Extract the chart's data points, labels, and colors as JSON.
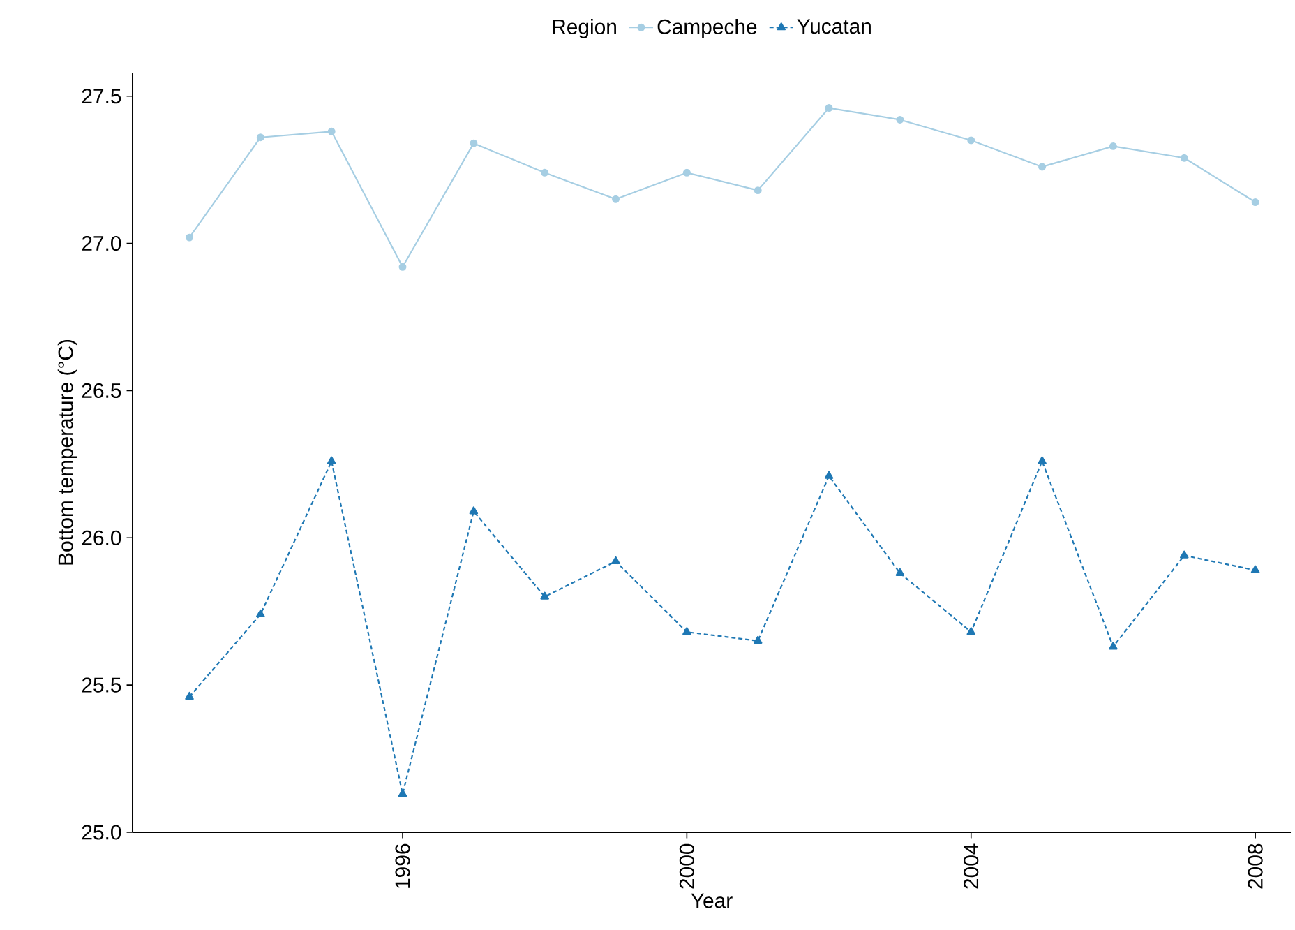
{
  "chart_data": {
    "type": "line",
    "xlabel": "Year",
    "ylabel": "Bottom temperature (°C)",
    "legend_title": "Region",
    "legend": "top",
    "x": [
      1993,
      1994,
      1995,
      1996,
      1997,
      1998,
      1999,
      2000,
      2001,
      2002,
      2003,
      2004,
      2005,
      2006,
      2007,
      2008
    ],
    "series": [
      {
        "name": "Campeche",
        "color": "#a6cee3",
        "marker": "circle",
        "line_style": "solid",
        "values": [
          27.02,
          27.36,
          27.38,
          26.92,
          27.34,
          27.24,
          27.15,
          27.24,
          27.18,
          27.46,
          27.42,
          27.35,
          27.26,
          27.33,
          27.29,
          27.14
        ]
      },
      {
        "name": "Yucatan",
        "color": "#1f78b4",
        "marker": "triangle",
        "line_style": "dotted",
        "values": [
          25.46,
          25.74,
          26.26,
          25.13,
          26.09,
          25.8,
          25.92,
          25.68,
          25.65,
          26.21,
          25.88,
          25.68,
          26.26,
          25.63,
          25.94,
          25.89
        ]
      }
    ],
    "xlim": [
      1992.2,
      2008.5
    ],
    "ylim": [
      25.0,
      27.58
    ],
    "xticks": [
      1996,
      2000,
      2004,
      2008
    ],
    "yticks": [
      {
        "value": 25.0,
        "label": "25.0"
      },
      {
        "value": 25.5,
        "label": "25.5"
      },
      {
        "value": 26.0,
        "label": "26.0"
      },
      {
        "value": 26.5,
        "label": "26.5"
      },
      {
        "value": 27.0,
        "label": "27.0"
      },
      {
        "value": 27.5,
        "label": "27.5"
      }
    ],
    "grid": false
  }
}
